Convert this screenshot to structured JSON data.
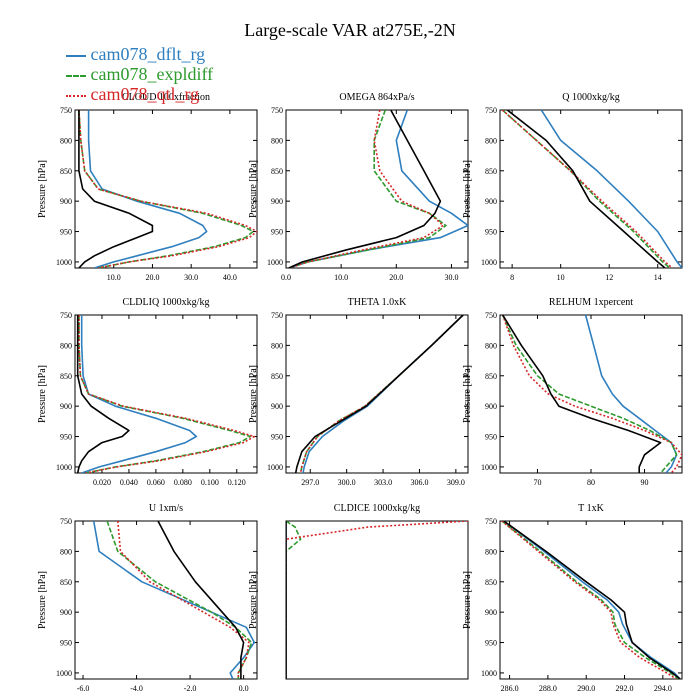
{
  "title": "Large-scale VAR at275E,-2N",
  "legend": [
    {
      "name": "cam078_dflt_rg",
      "color": "#2f7fbf",
      "dash": ""
    },
    {
      "name": "cam078_expldiff",
      "color": "#2e9a2e",
      "dash": "5,2"
    },
    {
      "name": "cam078_qtl_rg",
      "color": "#d62728",
      "dash": "2,2"
    },
    {
      "name": "",
      "color": "#000000",
      "dash": ""
    }
  ],
  "chart_data": [
    {
      "type": "line",
      "title": "CLOUD 100xfraction",
      "ylabel": "Pressure [hPa]",
      "ylim": [
        750,
        1010
      ],
      "yticks": [
        750,
        800,
        850,
        900,
        950,
        1000
      ],
      "xlim": [
        0,
        47
      ],
      "xticks": [
        10,
        20,
        30,
        40
      ],
      "xticklabels": [
        "10.0",
        "20.0",
        "30.0",
        "40.0"
      ],
      "y": [
        750,
        800,
        850,
        880,
        900,
        920,
        940,
        950,
        960,
        975,
        990,
        1000,
        1010
      ],
      "series": [
        {
          "name": "cam078_dflt_rg",
          "values": [
            3.5,
            3.5,
            4,
            7,
            16,
            27,
            33,
            34,
            32,
            25,
            16,
            10,
            5
          ]
        },
        {
          "name": "cam078_expldiff",
          "values": [
            1,
            1.5,
            2.5,
            6,
            17,
            33,
            43,
            46,
            44,
            36,
            24,
            14,
            6
          ]
        },
        {
          "name": "cam078_qtl_rg",
          "values": [
            1,
            1.5,
            2.5,
            6,
            17,
            34,
            44,
            47,
            45,
            37,
            25,
            14,
            6
          ]
        },
        {
          "name": "",
          "values": [
            1,
            1,
            1,
            2,
            5,
            14,
            20,
            20,
            16,
            10,
            5,
            2.5,
            1
          ]
        }
      ]
    },
    {
      "type": "line",
      "title": "OMEGA 864xPa/s",
      "ylabel": "Pressure [hPa]",
      "ylim": [
        750,
        1010
      ],
      "yticks": [
        750,
        800,
        850,
        900,
        950,
        1000
      ],
      "xlim": [
        0,
        33
      ],
      "xticks": [
        0,
        10,
        20,
        30
      ],
      "xticklabels": [
        "0.0",
        "10.0",
        "20.0",
        "30.0"
      ],
      "y": [
        750,
        800,
        850,
        900,
        920,
        940,
        960,
        980,
        1000,
        1010
      ],
      "series": [
        {
          "name": "cam078_dflt_rg",
          "values": [
            22,
            20,
            21,
            26,
            30,
            33,
            28,
            15,
            4,
            0.5
          ]
        },
        {
          "name": "cam078_expldiff",
          "values": [
            18,
            16,
            16,
            20,
            26,
            29,
            26,
            15,
            4,
            0.5
          ]
        },
        {
          "name": "cam078_qtl_rg",
          "values": [
            17,
            16,
            17,
            21,
            26,
            28.5,
            25,
            14,
            4,
            0.5
          ]
        },
        {
          "name": "",
          "values": [
            19,
            22,
            25,
            28,
            27,
            25,
            20,
            11,
            3,
            0.5
          ]
        }
      ]
    },
    {
      "type": "line",
      "title": "Q 1000xkg/kg",
      "ylabel": "Pressure [hPa]",
      "ylim": [
        750,
        1010
      ],
      "yticks": [
        750,
        800,
        850,
        900,
        950,
        1000
      ],
      "xlim": [
        7.5,
        15
      ],
      "xticks": [
        8,
        10,
        12,
        14
      ],
      "xticklabels": [
        "8",
        "10",
        "12",
        "14"
      ],
      "y": [
        750,
        800,
        850,
        900,
        950,
        1000,
        1010
      ],
      "series": [
        {
          "name": "cam078_dflt_rg",
          "values": [
            9.2,
            10,
            11.5,
            12.8,
            14,
            14.8,
            15
          ]
        },
        {
          "name": "cam078_expldiff",
          "values": [
            7.6,
            9,
            10.4,
            11.6,
            13,
            14.2,
            14.5
          ]
        },
        {
          "name": "cam078_qtl_rg",
          "values": [
            7.6,
            9,
            10.4,
            11.7,
            13.1,
            14.3,
            14.6
          ]
        },
        {
          "name": "",
          "values": [
            7.8,
            9.4,
            10.5,
            11.2,
            12.6,
            14,
            14.3
          ]
        }
      ]
    },
    {
      "type": "line",
      "title": "CLDLIQ 1000xkg/kg",
      "ylabel": "Pressure [hPa]",
      "ylim": [
        750,
        1010
      ],
      "yticks": [
        750,
        800,
        850,
        900,
        950,
        1000
      ],
      "xlim": [
        0,
        0.135
      ],
      "xticks": [
        0.02,
        0.04,
        0.06,
        0.08,
        0.1,
        0.12
      ],
      "xticklabels": [
        "0.020",
        "0.040",
        "0.060",
        "0.080",
        "0.100",
        "0.120"
      ],
      "y": [
        750,
        800,
        850,
        880,
        900,
        920,
        940,
        950,
        960,
        975,
        990,
        1000,
        1010
      ],
      "series": [
        {
          "name": "cam078_dflt_rg",
          "values": [
            0.005,
            0.005,
            0.006,
            0.01,
            0.03,
            0.06,
            0.085,
            0.09,
            0.082,
            0.06,
            0.035,
            0.018,
            0.005
          ]
        },
        {
          "name": "cam078_expldiff",
          "values": [
            0.003,
            0.003,
            0.004,
            0.01,
            0.035,
            0.08,
            0.115,
            0.13,
            0.122,
            0.095,
            0.06,
            0.03,
            0.008
          ]
        },
        {
          "name": "cam078_qtl_rg",
          "values": [
            0.003,
            0.003,
            0.004,
            0.01,
            0.036,
            0.082,
            0.118,
            0.133,
            0.125,
            0.097,
            0.062,
            0.031,
            0.008
          ]
        },
        {
          "name": "",
          "values": [
            0.002,
            0.002,
            0.002,
            0.005,
            0.012,
            0.025,
            0.04,
            0.035,
            0.02,
            0.01,
            0.005,
            0.003,
            0.002
          ]
        }
      ]
    },
    {
      "type": "line",
      "title": "THETA 1.0xK",
      "ylabel": "Pressure [hPa]",
      "ylim": [
        750,
        1010
      ],
      "yticks": [
        750,
        800,
        850,
        900,
        950,
        1000
      ],
      "xlim": [
        295,
        310
      ],
      "xticks": [
        297,
        300,
        303,
        306,
        309
      ],
      "xticklabels": [
        "297.0",
        "300.0",
        "303.0",
        "306.0",
        "309.0"
      ],
      "y": [
        750,
        800,
        850,
        900,
        925,
        950,
        975,
        1000,
        1010
      ],
      "series": [
        {
          "name": "cam078_dflt_rg",
          "values": [
            309.6,
            307,
            304.3,
            301.7,
            299.7,
            298,
            296.9,
            296.5,
            296.4
          ]
        },
        {
          "name": "cam078_expldiff",
          "values": [
            309.6,
            307,
            304.3,
            301.5,
            299.3,
            297.6,
            296.7,
            296.3,
            296.2
          ]
        },
        {
          "name": "cam078_qtl_rg",
          "values": [
            309.6,
            307,
            304.3,
            301.5,
            299.3,
            297.6,
            296.7,
            296.3,
            296.2
          ]
        },
        {
          "name": "",
          "values": [
            309.6,
            307,
            304.3,
            301.6,
            299.5,
            297.4,
            296.3,
            295.9,
            295.8
          ]
        }
      ]
    },
    {
      "type": "line",
      "title": "RELHUM 1xpercent",
      "ylabel": "Pressure [hPa]",
      "ylim": [
        750,
        1010
      ],
      "yticks": [
        750,
        800,
        850,
        900,
        950,
        1000
      ],
      "xlim": [
        63,
        97
      ],
      "xticks": [
        70,
        80,
        90
      ],
      "xticklabels": [
        "70",
        "80",
        "90"
      ],
      "y": [
        750,
        800,
        850,
        880,
        900,
        920,
        940,
        960,
        980,
        1000,
        1010
      ],
      "series": [
        {
          "name": "cam078_dflt_rg",
          "values": [
            79,
            80.5,
            82,
            84,
            86,
            89,
            92,
            95,
            96,
            95,
            94
          ]
        },
        {
          "name": "cam078_expldiff",
          "values": [
            63.5,
            66,
            70,
            74,
            80,
            86,
            91,
            95,
            96,
            94,
            93
          ]
        },
        {
          "name": "cam078_qtl_rg",
          "values": [
            63.5,
            65.5,
            68.5,
            72,
            77,
            84,
            90,
            95,
            97,
            96,
            95
          ]
        },
        {
          "name": "",
          "values": [
            63.5,
            67,
            71,
            72.5,
            74,
            80,
            87,
            93,
            90,
            89,
            89
          ]
        }
      ]
    },
    {
      "type": "line",
      "title": "U 1xm/s",
      "ylabel": "Pressure [hPa]",
      "ylim": [
        750,
        1010
      ],
      "yticks": [
        750,
        800,
        850,
        900,
        950,
        1000
      ],
      "xlim": [
        -6.3,
        0.5
      ],
      "xticks": [
        -6,
        -4,
        -2,
        0
      ],
      "xticklabels": [
        "-6.0",
        "-4.0",
        "-2.0",
        "0.0"
      ],
      "y": [
        750,
        800,
        850,
        900,
        925,
        950,
        975,
        1000,
        1010
      ],
      "series": [
        {
          "name": "cam078_dflt_rg",
          "values": [
            -5.6,
            -5.4,
            -3.8,
            -1.2,
            0.1,
            0.4,
            0,
            -0.5,
            -0.4
          ]
        },
        {
          "name": "cam078_expldiff",
          "values": [
            -5.1,
            -4.7,
            -3.3,
            -1.2,
            -0.3,
            0.3,
            0.1,
            -0.2,
            -0.2
          ]
        },
        {
          "name": "cam078_qtl_rg",
          "values": [
            -4.7,
            -4.6,
            -3.5,
            -1.5,
            -0.5,
            0.2,
            0.1,
            -0.2,
            -0.2
          ]
        },
        {
          "name": "",
          "values": [
            -3.2,
            -2.6,
            -1.8,
            -0.8,
            -0.3,
            0,
            -0.1,
            -0.1,
            -0.1
          ]
        }
      ]
    },
    {
      "type": "line",
      "title": "CLDICE 1000xkg/kg",
      "ylabel": "Pressure [hPa]",
      "ylim": [
        750,
        1010
      ],
      "yticks": [],
      "xlim": [
        0,
        1
      ],
      "xticks": [],
      "xticklabels": [],
      "y": [
        750,
        760,
        780,
        800,
        1010
      ],
      "series": [
        {
          "name": "cam078_dflt_rg",
          "values": [
            0,
            0,
            0,
            0,
            0
          ]
        },
        {
          "name": "cam078_expldiff",
          "values": [
            0,
            0.05,
            0.08,
            0,
            0
          ]
        },
        {
          "name": "cam078_qtl_rg",
          "values": [
            1,
            0.45,
            0,
            0,
            0
          ]
        },
        {
          "name": "",
          "values": [
            0,
            0,
            0,
            0,
            0
          ]
        }
      ]
    },
    {
      "type": "line",
      "title": "T 1xK",
      "ylabel": "Pressure [hPa]",
      "ylim": [
        750,
        1010
      ],
      "yticks": [
        750,
        800,
        850,
        900,
        950,
        1000
      ],
      "xlim": [
        285.5,
        295
      ],
      "xticks": [
        286,
        288,
        290,
        292,
        294
      ],
      "xticklabels": [
        "286.0",
        "288.0",
        "290.0",
        "292.0",
        "294.0"
      ],
      "y": [
        750,
        800,
        850,
        880,
        900,
        920,
        950,
        975,
        1000,
        1010
      ],
      "series": [
        {
          "name": "cam078_dflt_rg",
          "values": [
            285.7,
            287.8,
            289.8,
            291.1,
            291.7,
            291.9,
            292.4,
            293.4,
            294.6,
            294.9
          ]
        },
        {
          "name": "cam078_expldiff",
          "values": [
            285.6,
            287.6,
            289.5,
            290.8,
            291.4,
            291.5,
            292,
            293.1,
            294.4,
            294.8
          ]
        },
        {
          "name": "cam078_qtl_rg",
          "values": [
            285.6,
            287.5,
            289.4,
            290.7,
            291.3,
            291.4,
            291.8,
            292.8,
            294.2,
            294.7
          ]
        },
        {
          "name": "",
          "values": [
            285.7,
            287.9,
            290,
            291.3,
            292,
            292.1,
            292.4,
            293.3,
            294.5,
            294.9
          ]
        }
      ]
    }
  ]
}
